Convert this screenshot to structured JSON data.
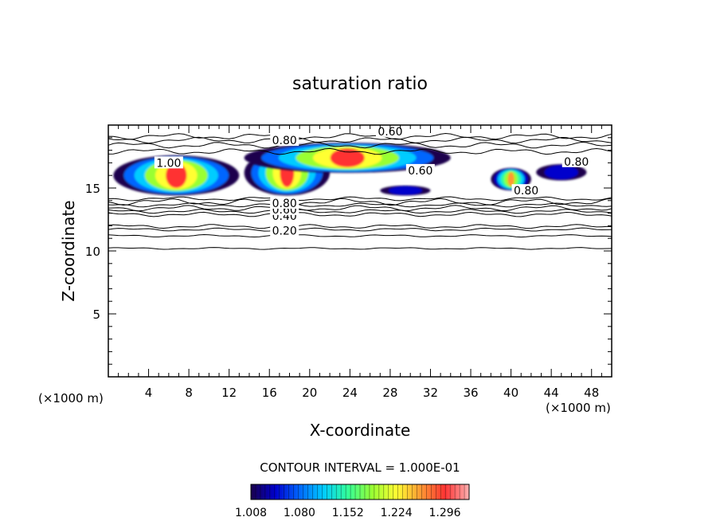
{
  "chart_data": {
    "type": "heatmap",
    "title": "saturation ratio",
    "xlabel": "X-coordinate",
    "ylabel": "Z-coordinate",
    "x_unit_left": "(×1000 m)",
    "x_unit_right": "(×1000 m)",
    "xlim": [
      0,
      50
    ],
    "ylim": [
      0,
      20
    ],
    "xticks": [
      4,
      8,
      12,
      16,
      20,
      24,
      28,
      32,
      36,
      40,
      44,
      48
    ],
    "yticks": [
      5,
      10,
      15
    ],
    "contour_interval_text": "CONTOUR INTERVAL = 1.000E-01",
    "colorbar": {
      "min": 1.008,
      "max": 1.332,
      "ticks": [
        "1.008",
        "1.080",
        "1.152",
        "1.224",
        "1.296"
      ],
      "colors": [
        "#1a004d",
        "#0000cc",
        "#0066ff",
        "#00ccff",
        "#33ff99",
        "#99ff33",
        "#ffff33",
        "#ff9933",
        "#ff3333",
        "#ffb0b0"
      ]
    },
    "contours": [
      {
        "level": 0.2,
        "label": "0.20",
        "z": 11.7
      },
      {
        "level": 0.4,
        "label": "0.40",
        "z": 12.9
      },
      {
        "level": 0.6,
        "label": "0.60",
        "z": 13.4
      },
      {
        "level": 0.8,
        "label": "0.80",
        "z": 13.9
      }
    ],
    "contour_labels": [
      {
        "text": "1.00",
        "x": 6,
        "z": 17.0
      },
      {
        "text": "0.80",
        "x": 17.5,
        "z": 18.8
      },
      {
        "text": "0.60",
        "x": 28,
        "z": 19.5
      },
      {
        "text": "0.60",
        "x": 31,
        "z": 16.4
      },
      {
        "text": "0.80",
        "x": 41.5,
        "z": 14.8
      },
      {
        "text": "0.80",
        "x": 46.5,
        "z": 17.1
      }
    ],
    "supersaturated_regions": [
      {
        "x": [
          0.5,
          13
        ],
        "z": [
          14.4,
          17.6
        ],
        "peak": 1.3
      },
      {
        "x": [
          13.5,
          22
        ],
        "z": [
          14.4,
          18.0
        ],
        "peak": 1.28
      },
      {
        "x": [
          13.5,
          34
        ],
        "z": [
          16.2,
          18.6
        ],
        "peak": 1.3
      },
      {
        "x": [
          27,
          32
        ],
        "z": [
          14.4,
          15.2
        ],
        "peak": 1.06
      },
      {
        "x": [
          38,
          42
        ],
        "z": [
          14.8,
          16.6
        ],
        "peak": 1.25
      },
      {
        "x": [
          42.5,
          47.5
        ],
        "z": [
          15.6,
          16.9
        ],
        "peak": 1.06
      }
    ]
  }
}
